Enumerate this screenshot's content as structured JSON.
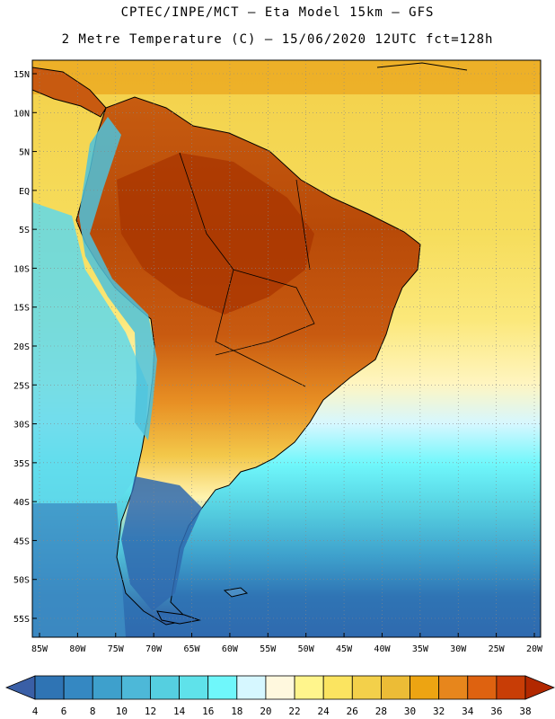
{
  "header": {
    "line1": "CPTEC/INPE/MCT —  Eta Model 15km — GFS",
    "line2": "2 Metre Temperature (C) — 15/06/2020 12UTC fct=128h"
  },
  "map": {
    "lat_ticks": [
      "15N",
      "10N",
      "5N",
      "EQ",
      "5S",
      "10S",
      "15S",
      "20S",
      "25S",
      "30S",
      "35S",
      "40S",
      "45S",
      "50S",
      "55S"
    ],
    "lon_ticks": [
      "85W",
      "80W",
      "75W",
      "70W",
      "65W",
      "60W",
      "55W",
      "50W",
      "45W",
      "40W",
      "35W",
      "30W",
      "25W",
      "20W"
    ]
  },
  "colorbar": {
    "labels": [
      "4",
      "6",
      "8",
      "10",
      "12",
      "14",
      "16",
      "18",
      "20",
      "22",
      "24",
      "26",
      "28",
      "30",
      "32",
      "34",
      "36",
      "38"
    ],
    "colors": [
      "#3a5fa6",
      "#2f74b4",
      "#3588c2",
      "#3ea0cc",
      "#4db8d8",
      "#55cfe0",
      "#5fe2ea",
      "#6ff7fb",
      "#d6f7ff",
      "#fff8de",
      "#fff58c",
      "#fbe460",
      "#f3d04a",
      "#ecbc36",
      "#eda412",
      "#e7861c",
      "#de6210",
      "#c83d06",
      "#b22800"
    ]
  }
}
